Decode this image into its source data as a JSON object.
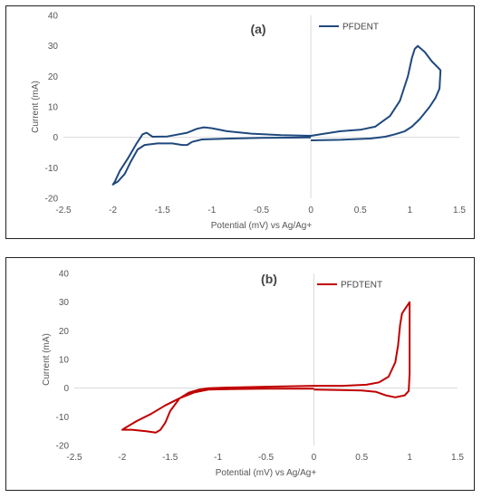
{
  "chart_data": [
    {
      "type": "line",
      "panel_label": "(a)",
      "xlabel": "Potential (mV) vs Ag/Ag+",
      "ylabel": "Current (mA)",
      "xlim": [
        -2.5,
        1.5
      ],
      "ylim": [
        -20,
        40
      ],
      "xticks": [
        -2.5,
        -2,
        -1.5,
        -1,
        -0.5,
        0,
        0.5,
        1,
        1.5
      ],
      "xtick_labels": [
        "-2.5",
        "-2",
        "-1.5",
        "-1",
        "-0.5",
        "0",
        "0.5",
        "1",
        "1.5"
      ],
      "yticks": [
        -20,
        -10,
        0,
        10,
        20,
        30,
        40
      ],
      "ytick_labels": [
        "-20",
        "-10",
        "0",
        "10",
        "20",
        "30",
        "40"
      ],
      "grid": false,
      "legend_position": "top-right",
      "series": [
        {
          "name": "PFDENT",
          "color": "#1f497d",
          "points": [
            [
              0,
              -1
            ],
            [
              0.3,
              -0.8
            ],
            [
              0.6,
              -0.4
            ],
            [
              0.75,
              0.2
            ],
            [
              0.85,
              1
            ],
            [
              0.95,
              2
            ],
            [
              1.02,
              3.5
            ],
            [
              1.1,
              6
            ],
            [
              1.2,
              10
            ],
            [
              1.26,
              13
            ],
            [
              1.3,
              16
            ],
            [
              1.31,
              22
            ],
            [
              1.28,
              23
            ],
            [
              1.22,
              25
            ],
            [
              1.15,
              28
            ],
            [
              1.08,
              30
            ],
            [
              1.05,
              29
            ],
            [
              1.02,
              26
            ],
            [
              0.98,
              20
            ],
            [
              0.9,
              12
            ],
            [
              0.8,
              7
            ],
            [
              0.65,
              3.5
            ],
            [
              0.5,
              2.5
            ],
            [
              0.3,
              2
            ],
            [
              0.1,
              1
            ],
            [
              0,
              0.5
            ],
            [
              -0.3,
              0.7
            ],
            [
              -0.6,
              1.2
            ],
            [
              -0.85,
              2
            ],
            [
              -1.0,
              3
            ],
            [
              -1.08,
              3.3
            ],
            [
              -1.15,
              2.8
            ],
            [
              -1.25,
              1.5
            ],
            [
              -1.45,
              0.3
            ],
            [
              -1.6,
              0.2
            ],
            [
              -1.66,
              1.5
            ],
            [
              -1.7,
              1
            ],
            [
              -1.76,
              -2
            ],
            [
              -1.85,
              -7
            ],
            [
              -1.93,
              -11
            ],
            [
              -1.98,
              -14.5
            ],
            [
              -2.0,
              -15.5
            ],
            [
              -1.95,
              -14.5
            ],
            [
              -1.88,
              -12
            ],
            [
              -1.82,
              -8
            ],
            [
              -1.75,
              -4
            ],
            [
              -1.68,
              -2.5
            ],
            [
              -1.55,
              -2
            ],
            [
              -1.4,
              -2
            ],
            [
              -1.3,
              -2.5
            ],
            [
              -1.25,
              -2.5
            ],
            [
              -1.2,
              -1.5
            ],
            [
              -1.1,
              -0.7
            ],
            [
              -0.8,
              -0.4
            ],
            [
              -0.5,
              -0.2
            ],
            [
              -0.2,
              -0.1
            ],
            [
              0,
              0
            ]
          ]
        }
      ]
    },
    {
      "type": "line",
      "panel_label": "(b)",
      "xlabel": "Potential (mV) vs Ag/Ag+",
      "ylabel": "Current (mA)",
      "xlim": [
        -2.5,
        1.5
      ],
      "ylim": [
        -20,
        40
      ],
      "xticks": [
        -2.5,
        -2,
        -1.5,
        -1,
        -0.5,
        0,
        0.5,
        1,
        1.5
      ],
      "xtick_labels": [
        "-2.5",
        "-2",
        "-1.5",
        "-1",
        "-0.5",
        "0",
        "0.5",
        "1",
        "1.5"
      ],
      "yticks": [
        -20,
        -10,
        0,
        10,
        20,
        30,
        40
      ],
      "ytick_labels": [
        "-20",
        "-10",
        "0",
        "10",
        "20",
        "30",
        "40"
      ],
      "grid": false,
      "legend_position": "top-right",
      "series": [
        {
          "name": "PFDTENT",
          "color": "#c00000",
          "points": [
            [
              0,
              -0.5
            ],
            [
              0.5,
              -0.8
            ],
            [
              0.65,
              -1.3
            ],
            [
              0.75,
              -2.5
            ],
            [
              0.85,
              -3.2
            ],
            [
              0.95,
              -2.5
            ],
            [
              0.99,
              -1
            ],
            [
              1.0,
              5
            ],
            [
              1.0,
              15
            ],
            [
              1.0,
              30
            ],
            [
              0.98,
              29
            ],
            [
              0.95,
              27.5
            ],
            [
              0.92,
              26
            ],
            [
              0.9,
              22
            ],
            [
              0.88,
              15
            ],
            [
              0.85,
              9
            ],
            [
              0.78,
              4
            ],
            [
              0.68,
              2
            ],
            [
              0.55,
              1.2
            ],
            [
              0.3,
              0.8
            ],
            [
              0,
              0.8
            ],
            [
              -0.5,
              0.5
            ],
            [
              -0.9,
              0.2
            ],
            [
              -1.1,
              0
            ],
            [
              -1.2,
              -0.5
            ],
            [
              -1.3,
              -1.5
            ],
            [
              -1.4,
              -3.5
            ],
            [
              -1.5,
              -8
            ],
            [
              -1.55,
              -12
            ],
            [
              -1.6,
              -14.5
            ],
            [
              -1.65,
              -15.5
            ],
            [
              -1.75,
              -15
            ],
            [
              -1.9,
              -14.5
            ],
            [
              -2.0,
              -14.5
            ],
            [
              -1.95,
              -13.5
            ],
            [
              -1.85,
              -11.5
            ],
            [
              -1.7,
              -9
            ],
            [
              -1.55,
              -6
            ],
            [
              -1.4,
              -3.5
            ],
            [
              -1.25,
              -1.5
            ],
            [
              -1.1,
              -0.5
            ],
            [
              -0.8,
              -0.3
            ],
            [
              -0.5,
              -0.2
            ],
            [
              -0.2,
              -0.2
            ],
            [
              0,
              -0.2
            ]
          ]
        }
      ]
    }
  ]
}
